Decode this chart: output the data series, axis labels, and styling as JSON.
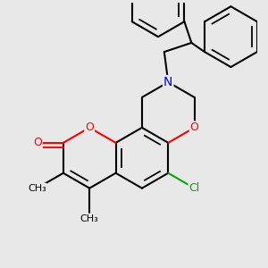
{
  "bg_color": "#e8e8e8",
  "bond_color": "#000000",
  "bond_width": 1.5,
  "atom_colors": {
    "O": "#ff0000",
    "N": "#0000ff",
    "Cl": "#00aa00",
    "C": "#000000"
  },
  "font_size": 9,
  "figsize": [
    3.0,
    3.0
  ],
  "dpi": 100
}
